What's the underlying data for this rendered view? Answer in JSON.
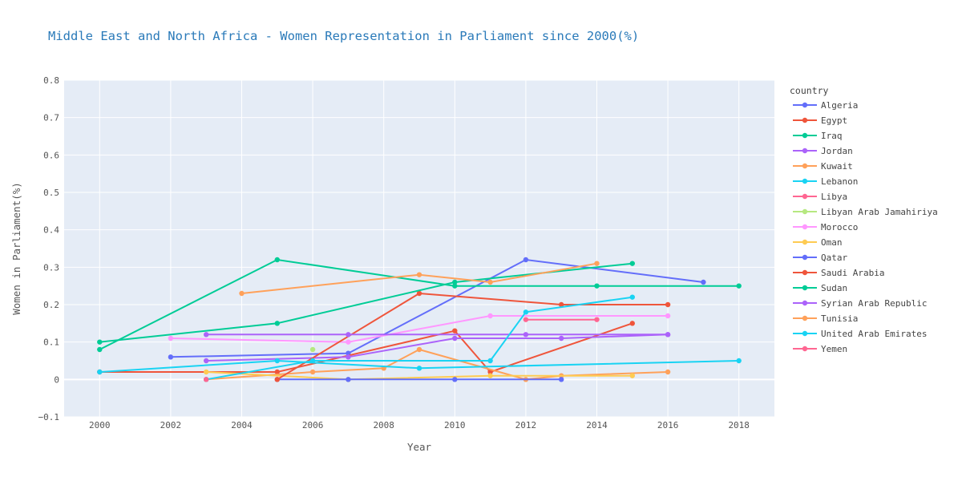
{
  "chart_data": {
    "type": "line",
    "title": "Middle East and North Africa - Women Representation in Parliament since 2000(%)",
    "xlabel": "Year",
    "ylabel": "Women in Parliament(%)",
    "legend_title": "country",
    "legend_position": "right",
    "grid": true,
    "xlim": [
      1999,
      2019
    ],
    "ylim": [
      -0.1,
      0.8
    ],
    "xticks": [
      2000,
      2002,
      2004,
      2006,
      2008,
      2010,
      2012,
      2014,
      2016,
      2018
    ],
    "yticks": [
      -0.1,
      0,
      0.1,
      0.2,
      0.3,
      0.4,
      0.5,
      0.6,
      0.7,
      0.8
    ],
    "ytick_labels": [
      "−0.1",
      "0",
      "0.1",
      "0.2",
      "0.3",
      "0.4",
      "0.5",
      "0.6",
      "0.7",
      "0.8"
    ],
    "series": [
      {
        "name": "Algeria",
        "color": "#636efa",
        "x": [
          2002,
          2007,
          2012,
          2017
        ],
        "y": [
          0.06,
          0.07,
          0.32,
          0.26
        ]
      },
      {
        "name": "Egypt",
        "color": "#ef553b",
        "x": [
          2000,
          2005,
          2010,
          2011,
          2015
        ],
        "y": [
          0.02,
          0.02,
          0.13,
          0.02,
          0.15
        ]
      },
      {
        "name": "Iraq",
        "color": "#00cc96",
        "x": [
          2000,
          2005,
          2010,
          2014,
          2018
        ],
        "y": [
          0.08,
          0.32,
          0.25,
          0.25,
          0.25
        ]
      },
      {
        "name": "Jordan",
        "color": "#ab63fa",
        "x": [
          2003,
          2007,
          2010,
          2013,
          2016
        ],
        "y": [
          0.05,
          0.06,
          0.11,
          0.11,
          0.12
        ]
      },
      {
        "name": "Kuwait",
        "color": "#ffa15a",
        "x": [
          2003,
          2006,
          2008,
          2009,
          2012,
          2013,
          2016
        ],
        "y": [
          0.0,
          0.02,
          0.03,
          0.08,
          0.0,
          0.01,
          0.02
        ]
      },
      {
        "name": "Lebanon",
        "color": "#19d3f3",
        "x": [
          2000,
          2005,
          2009,
          2018
        ],
        "y": [
          0.02,
          0.05,
          0.03,
          0.05
        ]
      },
      {
        "name": "Libya",
        "color": "#ff6692",
        "x": [
          2012,
          2014
        ],
        "y": [
          0.16,
          0.16
        ]
      },
      {
        "name": "Libyan Arab Jamahiriya",
        "color": "#b6e880",
        "x": [
          2006
        ],
        "y": [
          0.08
        ]
      },
      {
        "name": "Morocco",
        "color": "#ff97ff",
        "x": [
          2002,
          2007,
          2011,
          2016
        ],
        "y": [
          0.11,
          0.1,
          0.17,
          0.17
        ]
      },
      {
        "name": "Oman",
        "color": "#fecb52",
        "x": [
          2003,
          2007,
          2011,
          2015
        ],
        "y": [
          0.02,
          0.0,
          0.01,
          0.01
        ]
      },
      {
        "name": "Qatar",
        "color": "#636efa",
        "x": [
          2005,
          2007,
          2010,
          2013
        ],
        "y": [
          0.0,
          0.0,
          0.0,
          0.0
        ]
      },
      {
        "name": "Saudi Arabia",
        "color": "#ef553b",
        "x": [
          2005,
          2009,
          2013,
          2016
        ],
        "y": [
          0.0,
          0.23,
          0.2,
          0.2
        ]
      },
      {
        "name": "Sudan",
        "color": "#00cc96",
        "x": [
          2000,
          2005,
          2010,
          2015
        ],
        "y": [
          0.1,
          0.15,
          0.26,
          0.31
        ]
      },
      {
        "name": "Syrian Arab Republic",
        "color": "#ab63fa",
        "x": [
          2003,
          2007,
          2012,
          2016
        ],
        "y": [
          0.12,
          0.12,
          0.12,
          0.12
        ]
      },
      {
        "name": "Tunisia",
        "color": "#ffa15a",
        "x": [
          2004,
          2009,
          2011,
          2014
        ],
        "y": [
          0.23,
          0.28,
          0.26,
          0.31
        ]
      },
      {
        "name": "United Arab Emirates",
        "color": "#19d3f3",
        "x": [
          2003,
          2006,
          2011,
          2012,
          2015
        ],
        "y": [
          0.0,
          0.05,
          0.05,
          0.18,
          0.22
        ]
      },
      {
        "name": "Yemen",
        "color": "#ff6692",
        "x": [
          2003
        ],
        "y": [
          0.0
        ]
      }
    ]
  }
}
